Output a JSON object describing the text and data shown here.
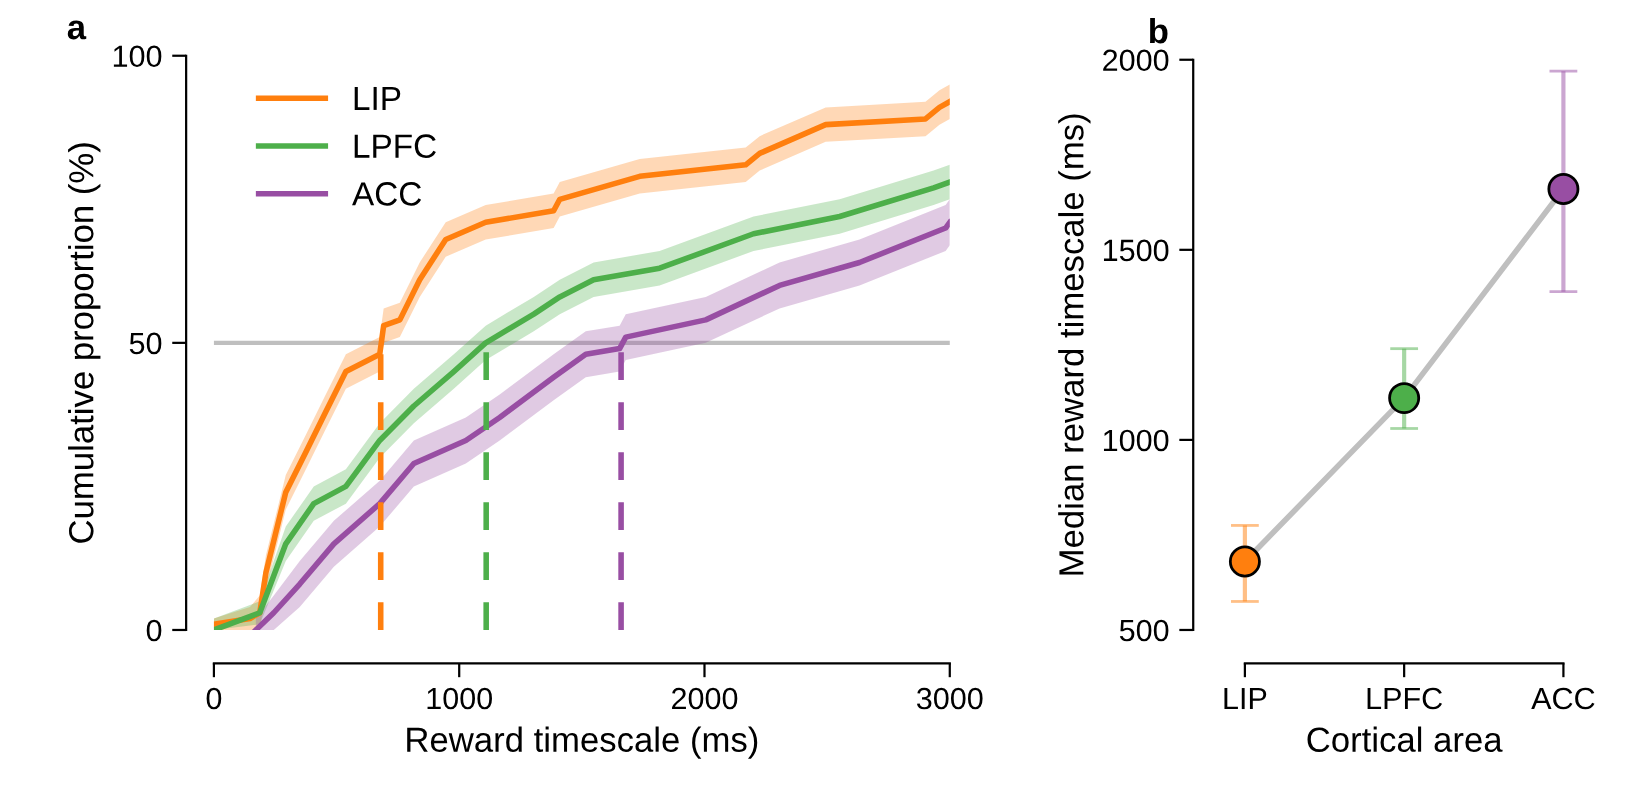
{
  "chart_data": [
    {
      "type": "line",
      "title": "a",
      "xlabel": "Reward timescale (ms)",
      "ylabel": "Cumulative proportion (%)",
      "xlim": [
        0,
        3000
      ],
      "ylim": [
        0,
        100
      ],
      "xticks": [
        0,
        1000,
        2000,
        3000
      ],
      "yticks": [
        0,
        50,
        100
      ],
      "grid": false,
      "legend": "top left",
      "marker": "none",
      "line_style": "solid",
      "ref_lines": [
        {
          "axis": "y",
          "value": 50,
          "color": "#bfbfbf"
        }
      ],
      "series": [
        {
          "name": "LIP",
          "color": "#ff7f0e",
          "x": [
            0,
            147,
            187,
            212,
            293,
            375,
            456,
            538,
            676,
            692,
            758,
            839,
            945,
            1108,
            1385,
            1410,
            1736,
            2168,
            2225,
            2494,
            2901,
            2958,
            3000
          ],
          "values": [
            1,
            2,
            3,
            10,
            24,
            31,
            38,
            45,
            48,
            53,
            54,
            61,
            68,
            71,
            73,
            75,
            79,
            81,
            83,
            88,
            89,
            91,
            92
          ],
          "lower": [
            0,
            0,
            0,
            7,
            21,
            28,
            35,
            42,
            45,
            50,
            51,
            58,
            65,
            68,
            70,
            72,
            76,
            78,
            80,
            85,
            86,
            88,
            89
          ],
          "upper": [
            2,
            4,
            6,
            13,
            27,
            34,
            41,
            48,
            51,
            56,
            57,
            64,
            71,
            74,
            76,
            78,
            82,
            84,
            86,
            91,
            92,
            94,
            95
          ]
        },
        {
          "name": "LPFC",
          "color": "#4daf4a",
          "x": [
            0,
            187,
            293,
            407,
            538,
            676,
            815,
            978,
            1108,
            1304,
            1410,
            1548,
            1817,
            2200,
            2551,
            2934,
            3000
          ],
          "values": [
            0,
            3,
            15,
            22,
            25,
            33,
            39,
            45,
            50,
            55,
            58,
            61,
            63,
            69,
            72,
            77,
            78
          ],
          "lower": [
            0,
            1,
            12,
            19,
            22,
            30,
            36,
            42,
            47,
            52,
            55,
            58,
            60,
            66,
            69,
            74,
            75
          ],
          "upper": [
            2,
            5,
            18,
            25,
            28,
            36,
            42,
            48,
            53,
            58,
            61,
            64,
            66,
            72,
            75,
            80,
            81
          ]
        },
        {
          "name": "ACC",
          "color": "#984ea3",
          "x": [
            171,
            244,
            350,
            489,
            676,
            815,
            1027,
            1165,
            1385,
            1516,
            1654,
            1679,
            2005,
            2306,
            2632,
            2983,
            3000
          ],
          "values": [
            0,
            3,
            8,
            15,
            22,
            29,
            33,
            37,
            44,
            48,
            49,
            51,
            54,
            60,
            64,
            70,
            71
          ],
          "lower": [
            0,
            0,
            4,
            11,
            18,
            25,
            29,
            33,
            40,
            44,
            45,
            47,
            50,
            56,
            60,
            66,
            67
          ],
          "upper": [
            2,
            6,
            12,
            19,
            26,
            33,
            37,
            41,
            48,
            52,
            53,
            55,
            58,
            64,
            68,
            74,
            75
          ]
        },
        {
          "type": "line",
          "color": "#ff7f0e",
          "line_style": "dashed",
          "x": [
            680,
            680
          ],
          "values": [
            0,
            48
          ]
        },
        {
          "type": "line",
          "color": "#4daf4a",
          "line_style": "dashed",
          "x": [
            1110,
            1110
          ],
          "values": [
            0,
            50
          ]
        },
        {
          "type": "line",
          "color": "#984ea3",
          "line_style": "dashed",
          "x": [
            1660,
            1660
          ],
          "values": [
            0,
            50
          ]
        }
      ]
    },
    {
      "type": "scatter",
      "title": "b",
      "xlabel": "Cortical area",
      "ylabel": "Median reward timescale (ms)",
      "categories": [
        "LIP",
        "LPFC",
        "ACC"
      ],
      "ylim": [
        500,
        2000
      ],
      "yticks": [
        500,
        1000,
        1500,
        2000
      ],
      "grid": false,
      "series": [
        {
          "type": "line",
          "color": "#bfbfbf",
          "values": [
            680,
            1110,
            1660
          ]
        },
        {
          "type": "scatter",
          "marker": "circle",
          "colors": [
            "#ff7f0e",
            "#4daf4a",
            "#984ea3"
          ],
          "values": [
            680,
            1110,
            1660
          ],
          "errors": [
            [
              575,
              775
            ],
            [
              1030,
              1240
            ],
            [
              1390,
              1970
            ]
          ]
        }
      ]
    }
  ]
}
